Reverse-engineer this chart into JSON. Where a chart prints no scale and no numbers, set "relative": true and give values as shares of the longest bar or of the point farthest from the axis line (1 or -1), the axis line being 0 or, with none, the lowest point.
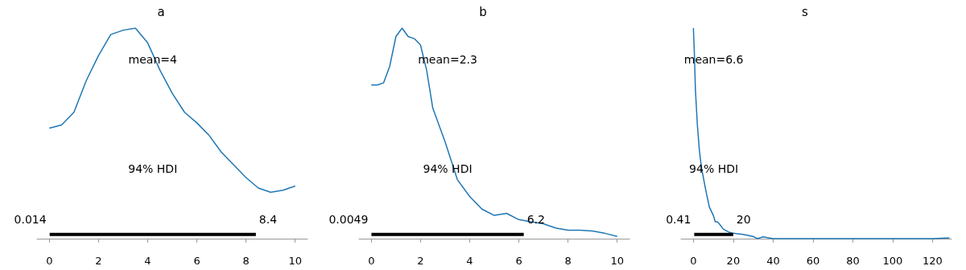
{
  "chart_data": [
    {
      "type": "line",
      "title": "a",
      "relative": true,
      "grid": false,
      "tick_labels": "x",
      "xlim": [
        -0.5,
        10.5
      ],
      "xticks": [
        0,
        2,
        4,
        6,
        8,
        10
      ],
      "annotations": [
        "mean=4",
        {
          "text": "0.014",
          "x": 0.014,
          "y": 0.02
        },
        {
          "text": "8.4",
          "x": 8.4,
          "y": 0.02
        }
      ],
      "series": [
        {
          "color": "#1f77b4",
          "x": [
            0,
            0.5,
            1,
            1.5,
            2,
            2.5,
            3,
            3.5,
            4,
            4.5,
            5,
            5.5,
            6,
            6.5,
            7,
            7.5,
            8,
            8.5,
            9,
            9.5,
            10
          ],
          "values": [
            0.525,
            0.54,
            0.6,
            0.75,
            0.87,
            0.97,
            0.99,
            1,
            0.93,
            0.8,
            0.69,
            0.6,
            0.55,
            0.49,
            0.41,
            0.35,
            0.29,
            0.24,
            0.22,
            0.23,
            0.25
          ]
        },
        {
          "name": "94% HDI",
          "type": "line",
          "color": "#000000",
          "x": [
            0.014,
            8.4
          ],
          "values": [
            0.02,
            0.02
          ]
        }
      ]
    },
    {
      "type": "line",
      "title": "b",
      "relative": true,
      "grid": false,
      "tick_labels": "x",
      "xlim": [
        -0.5,
        10.5
      ],
      "xticks": [
        0,
        2,
        4,
        6,
        8,
        10
      ],
      "annotations": [
        "mean=2.3",
        {
          "text": "0.0049",
          "x": 0.0049,
          "y": 0.02
        },
        {
          "text": "6.2",
          "x": 6.2,
          "y": 0.02
        }
      ],
      "series": [
        {
          "color": "#1f77b4",
          "x": [
            0,
            0.25,
            0.5,
            0.75,
            1,
            1.25,
            1.5,
            1.75,
            2,
            2.25,
            2.5,
            3,
            3.5,
            4,
            4.5,
            5,
            5.5,
            6,
            6.5,
            7,
            7.5,
            8,
            8.5,
            9,
            9.5,
            10
          ],
          "values": [
            0.73,
            0.73,
            0.74,
            0.82,
            0.96,
            1,
            0.96,
            0.95,
            0.92,
            0.8,
            0.62,
            0.46,
            0.28,
            0.2,
            0.14,
            0.11,
            0.12,
            0.09,
            0.08,
            0.07,
            0.05,
            0.04,
            0.04,
            0.036,
            0.025,
            0.01
          ]
        },
        {
          "name": "94% HDI",
          "type": "line",
          "color": "#000000",
          "x": [
            0.0049,
            6.2
          ],
          "values": [
            0.02,
            0.02
          ]
        }
      ]
    },
    {
      "type": "line",
      "title": "s",
      "relative": true,
      "grid": false,
      "tick_labels": "x",
      "xlim": [
        -6.2,
        129.5
      ],
      "xticks": [
        0,
        20,
        40,
        60,
        80,
        100,
        120
      ],
      "annotations": [
        "mean=6.6",
        {
          "text": "0.41",
          "x": 0.41,
          "y": 0.02
        },
        {
          "text": "20",
          "x": 20,
          "y": 0.02
        }
      ],
      "series": [
        {
          "color": "#1f77b4",
          "x": [
            0,
            0.5,
            1,
            2,
            3,
            4,
            5,
            6,
            8,
            10,
            11,
            12,
            13,
            15,
            18,
            20,
            25,
            30,
            32,
            35,
            40,
            50,
            60,
            70,
            80,
            90,
            100,
            110,
            120,
            128.5
          ],
          "values": [
            1,
            0.88,
            0.71,
            0.54,
            0.42,
            0.34,
            0.29,
            0.24,
            0.15,
            0.11,
            0.08,
            0.08,
            0.07,
            0.045,
            0.03,
            0.025,
            0.02,
            0.01,
            0,
            0.008,
            0,
            0,
            0,
            0,
            0,
            0,
            0,
            0,
            0,
            0.003
          ]
        },
        {
          "name": "94% HDI",
          "type": "line",
          "color": "#000000",
          "x": [
            0.41,
            20
          ],
          "values": [
            0.02,
            0.02
          ]
        }
      ]
    }
  ]
}
